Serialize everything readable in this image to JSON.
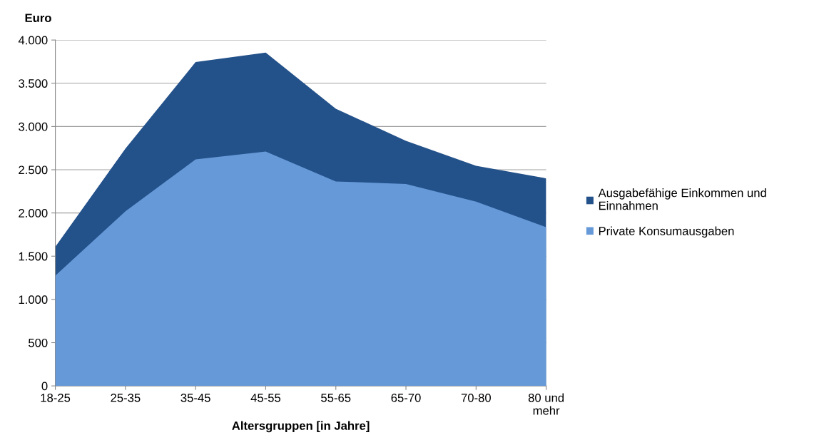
{
  "chart_data": {
    "type": "area",
    "xlabel": "Altersgruppen [in Jahre]",
    "ylabel": "Euro",
    "categories": [
      "18-25",
      "25-35",
      "35-45",
      "45-55",
      "55-65",
      "65-70",
      "70-80",
      "80 und\nmehr"
    ],
    "series": [
      {
        "name": "Ausgabefähige Einkommen und Einnahmen",
        "color": "#23518a",
        "values": [
          1610,
          2745,
          3745,
          3855,
          3205,
          2835,
          2545,
          2400
        ]
      },
      {
        "name": "Private Konsumausgaben",
        "color": "#6699d8",
        "values": [
          1275,
          2020,
          2620,
          2710,
          2365,
          2335,
          2130,
          1835
        ]
      }
    ],
    "ylim": [
      0,
      4000
    ],
    "yticks": [
      0,
      500,
      {
        "value": 1000,
        "label": "1.000"
      },
      {
        "value": 1500,
        "label": "1.500"
      },
      {
        "value": 2000,
        "label": "2.000"
      },
      {
        "value": 2500,
        "label": "2.500"
      },
      {
        "value": 3000,
        "label": "3.000"
      },
      {
        "value": 3500,
        "label": "3.500"
      },
      {
        "value": 4000,
        "label": "4.000"
      }
    ],
    "grid": "y",
    "legend": "right"
  }
}
